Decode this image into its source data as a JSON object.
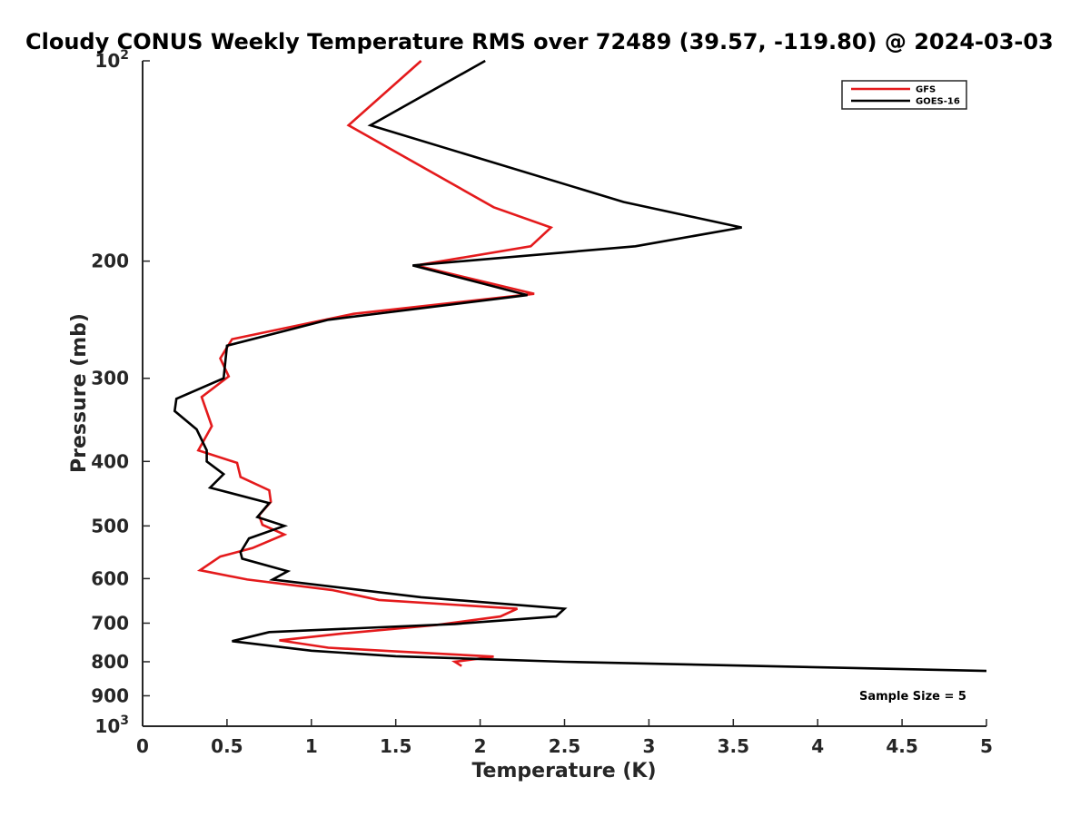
{
  "chart_data": {
    "type": "line",
    "title": "Cloudy CONUS Weekly Temperature RMS over 72489 (39.57, -119.80) @ 2024-03-03",
    "xlabel": "Temperature (K)",
    "ylabel": "Pressure (mb)",
    "xlim": [
      0,
      5
    ],
    "ylim": [
      100,
      1000
    ],
    "y_scale": "log",
    "y_reversed": true,
    "x_ticks": [
      "0",
      "0.5",
      "1",
      "1.5",
      "2",
      "2.5",
      "3",
      "3.5",
      "4",
      "4.5",
      "5"
    ],
    "x_tick_values": [
      0,
      0.5,
      1,
      1.5,
      2,
      2.5,
      3,
      3.5,
      4,
      4.5,
      5
    ],
    "y_ticks": [
      {
        "value": 100,
        "label": "10",
        "sup": "2"
      },
      {
        "value": 200,
        "label": "200",
        "sup": ""
      },
      {
        "value": 300,
        "label": "300",
        "sup": ""
      },
      {
        "value": 400,
        "label": "400",
        "sup": ""
      },
      {
        "value": 500,
        "label": "500",
        "sup": ""
      },
      {
        "value": 600,
        "label": "600",
        "sup": ""
      },
      {
        "value": 700,
        "label": "700",
        "sup": ""
      },
      {
        "value": 800,
        "label": "800",
        "sup": ""
      },
      {
        "value": 900,
        "label": "900",
        "sup": ""
      },
      {
        "value": 1000,
        "label": "10",
        "sup": "3"
      }
    ],
    "grid": false,
    "legend_position": "top-right",
    "annotation": "Sample Size = 5",
    "series": [
      {
        "name": "GFS",
        "color": "#e41a1c",
        "points": [
          [
            1.65,
            100
          ],
          [
            1.22,
            125
          ],
          [
            2.08,
            166
          ],
          [
            2.42,
            178
          ],
          [
            2.3,
            190
          ],
          [
            1.62,
            203
          ],
          [
            2.32,
            224
          ],
          [
            1.25,
            240
          ],
          [
            0.53,
            262
          ],
          [
            0.46,
            280
          ],
          [
            0.51,
            298
          ],
          [
            0.35,
            320
          ],
          [
            0.41,
            354
          ],
          [
            0.33,
            385
          ],
          [
            0.56,
            402
          ],
          [
            0.58,
            422
          ],
          [
            0.75,
            442
          ],
          [
            0.76,
            460
          ],
          [
            0.69,
            482
          ],
          [
            0.71,
            498
          ],
          [
            0.84,
            515
          ],
          [
            0.65,
            540
          ],
          [
            0.46,
            556
          ],
          [
            0.34,
            583
          ],
          [
            0.62,
            602
          ],
          [
            1.12,
            624
          ],
          [
            1.4,
            646
          ],
          [
            2.22,
            666
          ],
          [
            2.12,
            684
          ],
          [
            1.75,
            704
          ],
          [
            1.2,
            725
          ],
          [
            0.81,
            743
          ],
          [
            1.1,
            762
          ],
          [
            1.5,
            772
          ],
          [
            2.08,
            786
          ],
          [
            1.85,
            800
          ],
          [
            1.89,
            812
          ]
        ]
      },
      {
        "name": "GOES-16",
        "color": "#000000",
        "points": [
          [
            2.03,
            100
          ],
          [
            1.35,
            125
          ],
          [
            2.85,
            163
          ],
          [
            3.55,
            178
          ],
          [
            2.92,
            190
          ],
          [
            1.6,
            203
          ],
          [
            2.28,
            225
          ],
          [
            1.1,
            245
          ],
          [
            0.5,
            268
          ],
          [
            0.48,
            300
          ],
          [
            0.2,
            322
          ],
          [
            0.19,
            336
          ],
          [
            0.32,
            358
          ],
          [
            0.38,
            385
          ],
          [
            0.38,
            400
          ],
          [
            0.48,
            418
          ],
          [
            0.4,
            438
          ],
          [
            0.75,
            462
          ],
          [
            0.68,
            485
          ],
          [
            0.84,
            500
          ],
          [
            0.63,
            522
          ],
          [
            0.58,
            548
          ],
          [
            0.59,
            560
          ],
          [
            0.86,
            585
          ],
          [
            0.77,
            602
          ],
          [
            1.65,
            640
          ],
          [
            2.5,
            666
          ],
          [
            2.45,
            684
          ],
          [
            1.85,
            702
          ],
          [
            0.75,
            722
          ],
          [
            0.53,
            745
          ],
          [
            1.0,
            770
          ],
          [
            1.5,
            785
          ],
          [
            2.5,
            800
          ],
          [
            5.0,
            826
          ]
        ]
      }
    ]
  }
}
